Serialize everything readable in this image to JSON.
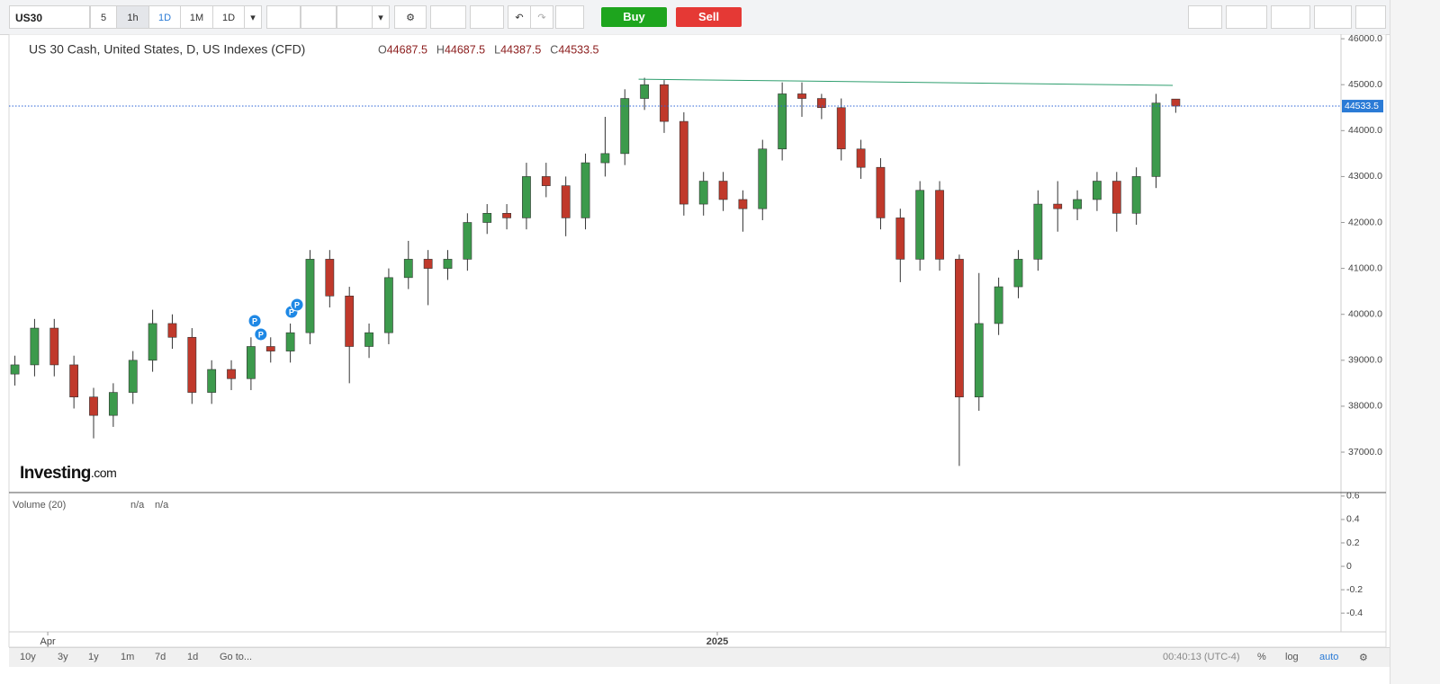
{
  "toolbar": {
    "symbol": "US30",
    "intervals": [
      "5",
      "1h",
      "1D",
      "1M",
      "1D"
    ],
    "buy": "Buy",
    "sell": "Sell"
  },
  "footer": {
    "ranges": [
      "10y",
      "3y",
      "1y",
      "1m",
      "7d",
      "1d"
    ],
    "goto": "Go to...",
    "clock": "00:40:13 (UTC-4)",
    "options": [
      "%",
      "log",
      "auto"
    ]
  },
  "chart_data": {
    "type": "candlestick",
    "title": "US 30 Cash, United States, D, US Indexes (CFD)",
    "ohlc_labels": [
      "O",
      "H",
      "L",
      "C"
    ],
    "logo": "Investing",
    "logo_suffix": ".com",
    "up_color": "#3c9a4c",
    "down_color": "#c0392b",
    "x": [
      0,
      1,
      2,
      3,
      4,
      5,
      6,
      7,
      8,
      9,
      10,
      11,
      12,
      13,
      14,
      15,
      16,
      17,
      18,
      19,
      20,
      21,
      22,
      23,
      24,
      25,
      26,
      27,
      28,
      29,
      30,
      31,
      32,
      33,
      34,
      35,
      36,
      37,
      38,
      39,
      40,
      41,
      42,
      43,
      44,
      45,
      46,
      47,
      48,
      49,
      50,
      51,
      52,
      53,
      54,
      55,
      56,
      57,
      58,
      59
    ],
    "open": [
      38700,
      38900,
      39700,
      38900,
      38200,
      37800,
      38300,
      39000,
      39800,
      39500,
      38300,
      38800,
      38600,
      39300,
      39200,
      39600,
      41200,
      40400,
      39300,
      39600,
      40800,
      41200,
      41000,
      41200,
      42000,
      42200,
      42100,
      43000,
      42800,
      42100,
      43300,
      43500,
      44700,
      45000,
      44200,
      42400,
      42900,
      42500,
      42300,
      43600,
      44800,
      44700,
      44500,
      43600,
      43200,
      42100,
      41200,
      42700,
      41200,
      38200,
      39800,
      40600,
      41200,
      42400,
      42300,
      42500,
      42900,
      42200,
      43000,
      44687.5
    ],
    "high": [
      39100,
      39900,
      39900,
      39100,
      38400,
      38500,
      39200,
      40100,
      40000,
      39700,
      39000,
      39000,
      39500,
      39500,
      39800,
      41400,
      41400,
      40600,
      39800,
      41000,
      41600,
      41400,
      41400,
      42200,
      42400,
      42400,
      43300,
      43300,
      43000,
      43500,
      44300,
      44900,
      45150,
      45100,
      44400,
      43100,
      43100,
      42700,
      43800,
      45050,
      45050,
      44800,
      44700,
      43800,
      43400,
      42300,
      42900,
      42900,
      41300,
      40900,
      40800,
      41400,
      42700,
      42900,
      42700,
      43100,
      43100,
      43200,
      44800,
      44687.5
    ],
    "low": [
      38450,
      38650,
      38650,
      37950,
      37300,
      37550,
      38050,
      38750,
      39250,
      38050,
      38050,
      38350,
      38350,
      38950,
      38950,
      39350,
      40150,
      38500,
      39050,
      39350,
      40550,
      40200,
      40750,
      40950,
      41750,
      41850,
      41850,
      42550,
      41700,
      41850,
      43000,
      43250,
      44450,
      43950,
      42150,
      42150,
      42250,
      41800,
      42050,
      43350,
      44300,
      44250,
      43350,
      42950,
      41850,
      40700,
      40950,
      40950,
      36700,
      37900,
      39550,
      40350,
      40950,
      41800,
      42050,
      42250,
      41800,
      41950,
      42750,
      44387.5
    ],
    "close": [
      38900,
      39700,
      38900,
      38200,
      37800,
      38300,
      39000,
      39800,
      39500,
      38300,
      38800,
      38600,
      39300,
      39200,
      39600,
      41200,
      40400,
      39300,
      39600,
      40800,
      41200,
      41000,
      41200,
      42000,
      42200,
      42100,
      43000,
      42800,
      42100,
      43300,
      43500,
      44700,
      45000,
      44200,
      42400,
      42900,
      42500,
      42300,
      43600,
      44800,
      44700,
      44500,
      43600,
      43200,
      42100,
      41200,
      42700,
      41200,
      38200,
      39800,
      40600,
      41200,
      42400,
      42300,
      42500,
      42900,
      42200,
      43000,
      44600,
      44533.5
    ],
    "xlim": [
      -0.3,
      67.4
    ],
    "xticks": [
      {
        "value": 1.67,
        "label": "Apr"
      },
      {
        "value": 35.7,
        "label": "2025"
      }
    ],
    "ylim": [
      36120,
      46100
    ],
    "yticks": [
      {
        "value": 46000,
        "label": "46000.0"
      },
      {
        "value": 45000,
        "label": "45000.0"
      },
      {
        "value": 44000,
        "label": "44000.0"
      },
      {
        "value": 43000,
        "label": "43000.0"
      },
      {
        "value": 42000,
        "label": "42000.0"
      },
      {
        "value": 41000,
        "label": "41000.0"
      },
      {
        "value": 40000,
        "label": "40000.0"
      },
      {
        "value": 39000,
        "label": "39000.0"
      },
      {
        "value": 38000,
        "label": "38000.0"
      },
      {
        "value": 37000,
        "label": "37000.0"
      }
    ],
    "last_price_line": true,
    "trendline": {
      "x": [
        31.7,
        58.85
      ],
      "y": [
        45120,
        44985
      ],
      "color": "#2e9e6e"
    },
    "markers": [
      {
        "label": "P",
        "x": 12.19,
        "y": 39858
      },
      {
        "label": "P",
        "x": 12.5,
        "y": 39565
      },
      {
        "label": "P",
        "x": 14.06,
        "y": 40053
      },
      {
        "label": "P",
        "x": 14.34,
        "y": 40210
      }
    ],
    "volume": {
      "label": "Volume (20)",
      "readouts": [
        "n/a",
        "n/a"
      ],
      "ylim": [
        -0.56,
        0.63
      ],
      "yticks": [
        0.6,
        0.4,
        0.2,
        0,
        -0.2,
        -0.4
      ]
    }
  }
}
